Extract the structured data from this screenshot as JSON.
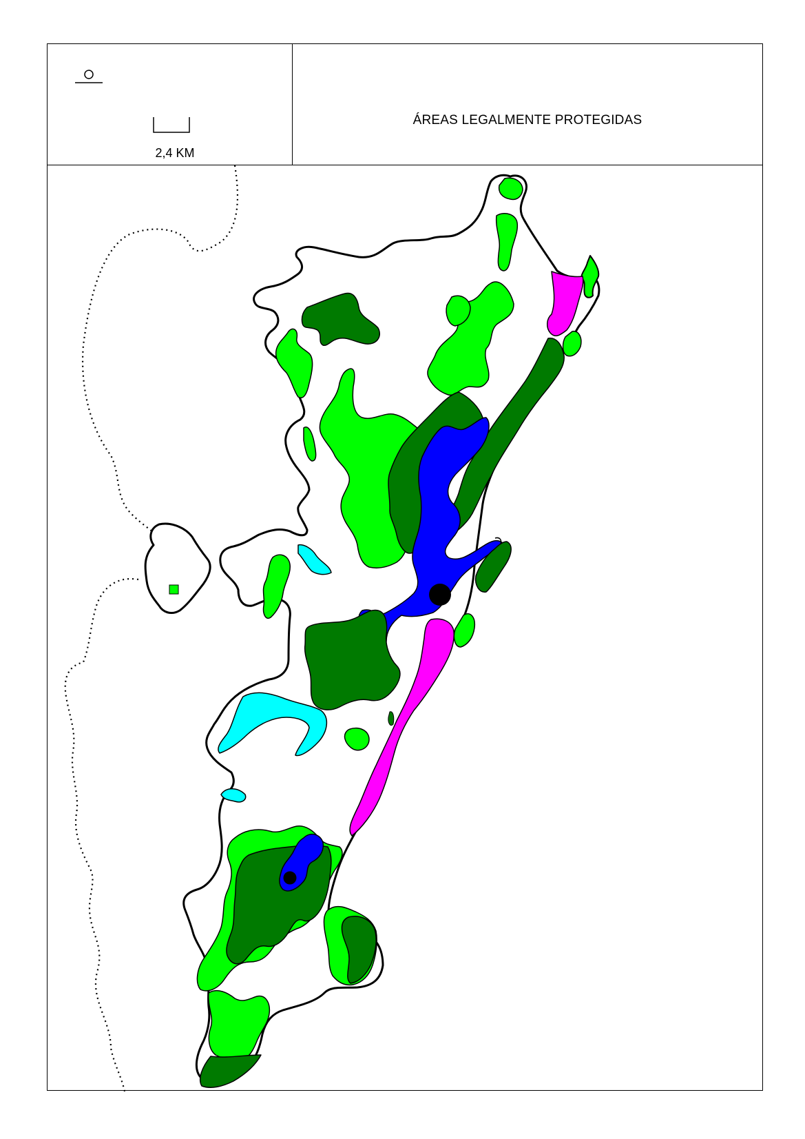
{
  "map": {
    "title": "ÁREAS LEGALMENTE PROTEGIDAS",
    "scale_label": "2,4 KM",
    "north_symbol_icon": "circle-over-line",
    "colors": {
      "dense_forest": "#007a00",
      "light_forest": "#00ff00",
      "water": "#0000ff",
      "dunes_restinga": "#ff00ff",
      "mangrove": "#00ffff",
      "outline": "#000000",
      "background": "#ffffff"
    }
  }
}
